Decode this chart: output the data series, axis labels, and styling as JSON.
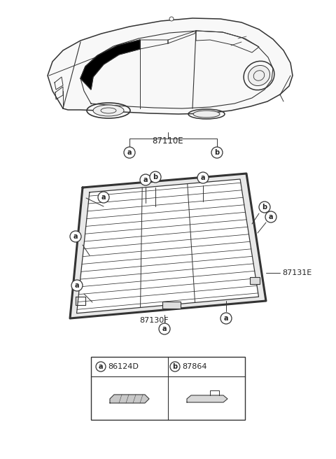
{
  "bg_color": "#ffffff",
  "car_label": "87110E",
  "glass_label": "87131E",
  "molding_label": "87130F",
  "legend_items": [
    {
      "symbol": "a",
      "code": "86124D"
    },
    {
      "symbol": "b",
      "code": "87864"
    }
  ],
  "line_color": "#333333",
  "text_color": "#222222",
  "figsize": [
    4.8,
    6.56
  ],
  "dpi": 100
}
